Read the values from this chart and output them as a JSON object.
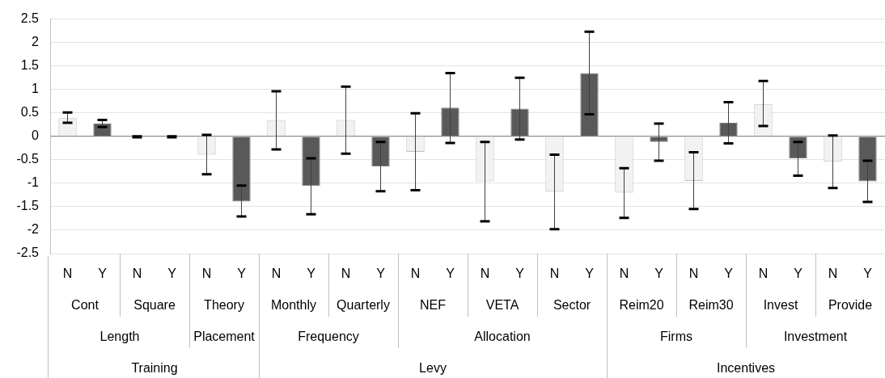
{
  "chart_data": {
    "type": "bar",
    "categories": [
      "N",
      "Y",
      "N",
      "Y",
      "N",
      "Y",
      "N",
      "Y",
      "N",
      "Y",
      "N",
      "Y",
      "N",
      "Y",
      "N",
      "Y",
      "N",
      "Y",
      "N",
      "Y",
      "N",
      "Y",
      "N",
      "Y"
    ],
    "values": [
      0.39,
      0.27,
      -0.01,
      -0.01,
      -0.39,
      -1.39,
      0.35,
      -1.06,
      0.35,
      -0.64,
      -0.33,
      0.61,
      -0.96,
      0.59,
      -1.18,
      1.35,
      -1.2,
      -0.12,
      -0.95,
      0.29,
      0.69,
      -0.47,
      -0.54,
      -0.96
    ],
    "colors": [
      "#f2f2f2",
      "#595959",
      "#f2f2f2",
      "#595959",
      "#f2f2f2",
      "#595959",
      "#f2f2f2",
      "#595959",
      "#f2f2f2",
      "#595959",
      "#f2f2f2",
      "#595959",
      "#f2f2f2",
      "#595959",
      "#f2f2f2",
      "#595959",
      "#f2f2f2",
      "#595959",
      "#f2f2f2",
      "#595959",
      "#f2f2f2",
      "#595959",
      "#f2f2f2",
      "#595959"
    ],
    "errors": [
      [
        0.29,
        0.51
      ],
      [
        0.2,
        0.35
      ],
      [
        -0.02,
        0
      ],
      [
        -0.02,
        0
      ],
      [
        -0.81,
        0.03
      ],
      [
        -1.71,
        -1.05
      ],
      [
        -0.28,
        0.96
      ],
      [
        -1.66,
        -0.47
      ],
      [
        -0.37,
        1.06
      ],
      [
        -1.17,
        -0.12
      ],
      [
        -1.15,
        0.49
      ],
      [
        -0.14,
        1.35
      ],
      [
        -1.81,
        -0.12
      ],
      [
        -0.07,
        1.25
      ],
      [
        -1.98,
        -0.39
      ],
      [
        0.47,
        2.23
      ],
      [
        -1.74,
        -0.68
      ],
      [
        -0.52,
        0.27
      ],
      [
        -1.55,
        -0.34
      ],
      [
        -0.15,
        0.73
      ],
      [
        0.22,
        1.18
      ],
      [
        -0.84,
        -0.12
      ],
      [
        -1.1,
        0.02
      ],
      [
        -1.4,
        -0.52
      ]
    ],
    "annotations": [
      "Cont",
      "Square",
      "Theory",
      "Monthly",
      "Quarterly",
      "NEF",
      "VETA",
      "Sector",
      "Reim20",
      "Reim30",
      "Invest",
      "Provide",
      "Length",
      "Placement",
      "Frequency",
      "Allocation",
      "Firms",
      "Investment",
      "Training",
      "Levy",
      "Incentives"
    ],
    "ylim": [
      -2.5,
      2.5
    ],
    "yticks": [
      -2.5,
      -2,
      -1.5,
      -1,
      -0.5,
      0,
      0.5,
      1,
      1.5,
      2,
      2.5
    ],
    "grid": "y",
    "legend": false
  }
}
